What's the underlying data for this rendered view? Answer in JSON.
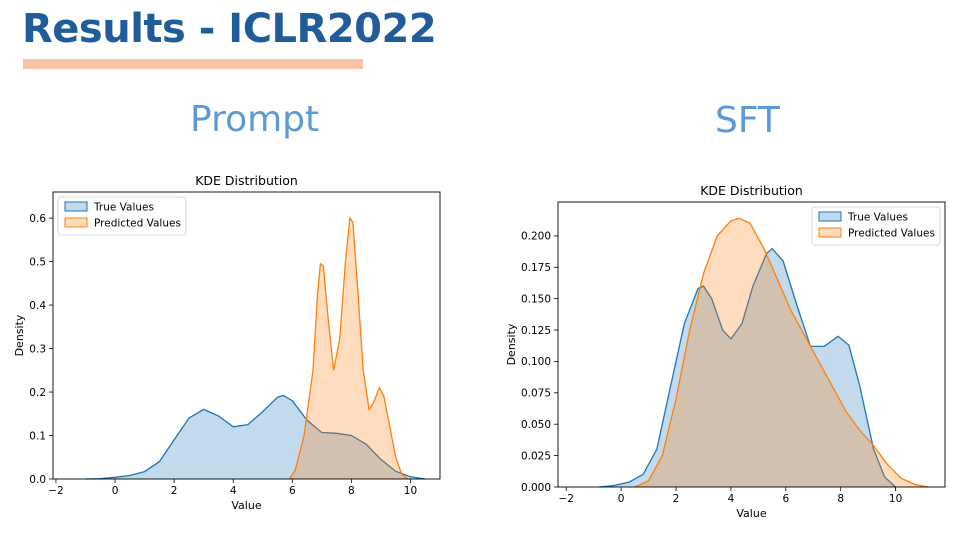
{
  "slide": {
    "title": "Results - ICLR2022",
    "left_label": "Prompt",
    "right_label": "SFT"
  },
  "colors": {
    "title": "#1f5c99",
    "underline": "#f7c4a5",
    "panel_label": "#5b9bd5",
    "true_fill": "#1f77b4",
    "pred_fill": "#ff7f0e"
  },
  "chart_data": [
    {
      "type": "area",
      "title": "KDE Distribution",
      "xlabel": "Value",
      "ylabel": "Density",
      "xlim": [
        -2.1,
        11.0
      ],
      "ylim": [
        0,
        0.66
      ],
      "xticks": [
        -2,
        0,
        2,
        4,
        6,
        8,
        10
      ],
      "yticks": [
        0.0,
        0.1,
        0.2,
        0.3,
        0.4,
        0.5,
        0.6
      ],
      "ytick_labels": [
        "0.0",
        "0.1",
        "0.2",
        "0.3",
        "0.4",
        "0.5",
        "0.6"
      ],
      "legend_position": "top-left",
      "series": [
        {
          "name": "True Values",
          "color": "#1f77b4",
          "points": [
            [
              -1.0,
              0.0
            ],
            [
              -0.5,
              0.001
            ],
            [
              0,
              0.004
            ],
            [
              0.5,
              0.008
            ],
            [
              1.0,
              0.017
            ],
            [
              1.5,
              0.04
            ],
            [
              2.0,
              0.09
            ],
            [
              2.5,
              0.14
            ],
            [
              3.0,
              0.16
            ],
            [
              3.5,
              0.145
            ],
            [
              4.0,
              0.12
            ],
            [
              4.5,
              0.125
            ],
            [
              5.0,
              0.155
            ],
            [
              5.5,
              0.188
            ],
            [
              5.7,
              0.192
            ],
            [
              6.0,
              0.18
            ],
            [
              6.5,
              0.135
            ],
            [
              7.0,
              0.107
            ],
            [
              7.5,
              0.105
            ],
            [
              8.0,
              0.1
            ],
            [
              8.5,
              0.08
            ],
            [
              9.0,
              0.045
            ],
            [
              9.5,
              0.018
            ],
            [
              10.0,
              0.005
            ],
            [
              10.5,
              0.0
            ]
          ]
        },
        {
          "name": "Predicted Values",
          "color": "#ff7f0e",
          "points": [
            [
              5.9,
              0.0
            ],
            [
              6.1,
              0.02
            ],
            [
              6.4,
              0.1
            ],
            [
              6.7,
              0.25
            ],
            [
              6.85,
              0.42
            ],
            [
              6.95,
              0.495
            ],
            [
              7.05,
              0.49
            ],
            [
              7.2,
              0.38
            ],
            [
              7.4,
              0.25
            ],
            [
              7.6,
              0.32
            ],
            [
              7.8,
              0.5
            ],
            [
              7.95,
              0.6
            ],
            [
              8.05,
              0.59
            ],
            [
              8.2,
              0.45
            ],
            [
              8.4,
              0.25
            ],
            [
              8.6,
              0.16
            ],
            [
              8.75,
              0.175
            ],
            [
              8.95,
              0.21
            ],
            [
              9.1,
              0.19
            ],
            [
              9.3,
              0.12
            ],
            [
              9.5,
              0.05
            ],
            [
              9.7,
              0.012
            ],
            [
              9.9,
              0.0
            ]
          ]
        }
      ]
    },
    {
      "type": "area",
      "title": "KDE Distribution",
      "xlabel": "Value",
      "ylabel": "Density",
      "xlim": [
        -2.3,
        11.8
      ],
      "ylim": [
        0,
        0.227
      ],
      "xticks": [
        -2,
        0,
        2,
        4,
        6,
        8,
        10
      ],
      "yticks": [
        0.0,
        0.025,
        0.05,
        0.075,
        0.1,
        0.125,
        0.15,
        0.175,
        0.2
      ],
      "ytick_labels": [
        "0.000",
        "0.025",
        "0.050",
        "0.075",
        "0.100",
        "0.125",
        "0.150",
        "0.175",
        "0.200"
      ],
      "legend_position": "top-right",
      "series": [
        {
          "name": "True Values",
          "color": "#1f77b4",
          "points": [
            [
              -0.8,
              0.0
            ],
            [
              -0.3,
              0.001
            ],
            [
              0.3,
              0.004
            ],
            [
              0.8,
              0.01
            ],
            [
              1.3,
              0.03
            ],
            [
              1.8,
              0.08
            ],
            [
              2.3,
              0.13
            ],
            [
              2.8,
              0.158
            ],
            [
              3.0,
              0.16
            ],
            [
              3.3,
              0.15
            ],
            [
              3.7,
              0.125
            ],
            [
              4.0,
              0.118
            ],
            [
              4.4,
              0.13
            ],
            [
              4.8,
              0.16
            ],
            [
              5.3,
              0.186
            ],
            [
              5.5,
              0.19
            ],
            [
              5.9,
              0.18
            ],
            [
              6.4,
              0.145
            ],
            [
              6.9,
              0.112
            ],
            [
              7.4,
              0.112
            ],
            [
              7.9,
              0.12
            ],
            [
              8.3,
              0.113
            ],
            [
              8.7,
              0.08
            ],
            [
              9.2,
              0.03
            ],
            [
              9.6,
              0.008
            ],
            [
              10.0,
              0.0
            ]
          ]
        },
        {
          "name": "Predicted Values",
          "color": "#ff7f0e",
          "points": [
            [
              0.5,
              0.0
            ],
            [
              1.0,
              0.005
            ],
            [
              1.5,
              0.025
            ],
            [
              2.0,
              0.07
            ],
            [
              2.5,
              0.125
            ],
            [
              3.0,
              0.17
            ],
            [
              3.5,
              0.2
            ],
            [
              4.0,
              0.212
            ],
            [
              4.3,
              0.214
            ],
            [
              4.7,
              0.21
            ],
            [
              5.2,
              0.19
            ],
            [
              5.7,
              0.165
            ],
            [
              6.2,
              0.14
            ],
            [
              6.7,
              0.12
            ],
            [
              7.2,
              0.1
            ],
            [
              7.7,
              0.08
            ],
            [
              8.2,
              0.06
            ],
            [
              8.7,
              0.045
            ],
            [
              9.2,
              0.033
            ],
            [
              9.7,
              0.018
            ],
            [
              10.2,
              0.007
            ],
            [
              10.7,
              0.002
            ],
            [
              11.2,
              0.0
            ]
          ]
        }
      ]
    }
  ]
}
